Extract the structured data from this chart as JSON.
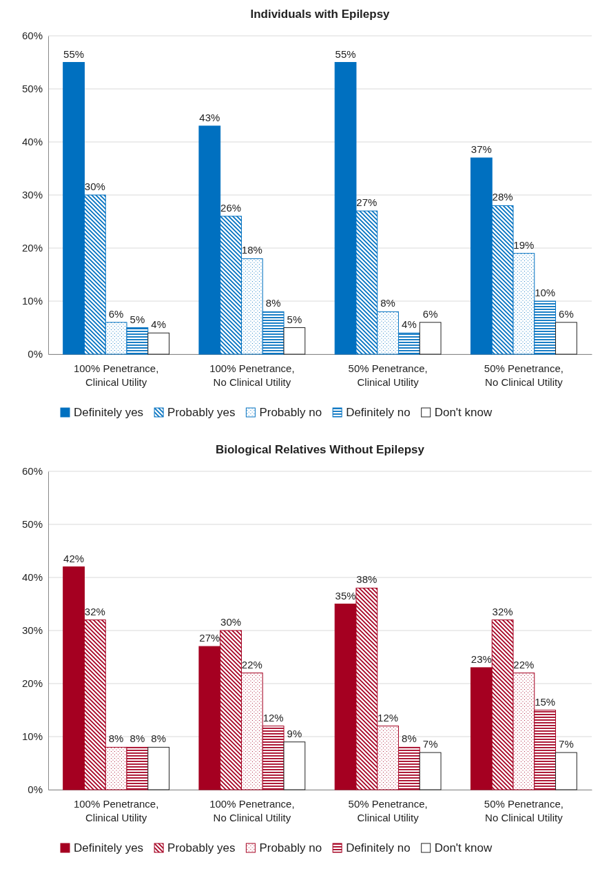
{
  "chart_data": [
    {
      "type": "bar",
      "title": "Individuals with Epilepsy",
      "categories": [
        "100% Penetrance, Clinical Utility",
        "100% Penetrance, No Clinical Utility",
        "50% Penetrance, Clinical Utility",
        "50% Penetrance, No Clinical Utility"
      ],
      "ylim": [
        0,
        60
      ],
      "yticks": [
        {
          "value": 0,
          "label": "0%"
        },
        {
          "value": 10,
          "label": "10%"
        },
        {
          "value": 20,
          "label": "20%"
        },
        {
          "value": 30,
          "label": "30%"
        },
        {
          "value": 40,
          "label": "40%"
        },
        {
          "value": 50,
          "label": "50%"
        },
        {
          "value": 60,
          "label": "60%"
        }
      ],
      "grid": "y",
      "legend": "bottom",
      "series": [
        {
          "name": "Definitely yes",
          "color": "#0070c0",
          "values": [
            55,
            43,
            55,
            37
          ],
          "value_labels": [
            "55%",
            "43%",
            "55%",
            "37%"
          ]
        },
        {
          "name": "Probably yes",
          "color": "#0070c0",
          "values": [
            30,
            26,
            27,
            28
          ],
          "value_labels": [
            "30%",
            "26%",
            "27%",
            "28%"
          ]
        },
        {
          "name": "Probably no",
          "color": "#0070c0",
          "values": [
            6,
            18,
            8,
            19
          ],
          "value_labels": [
            "6%",
            "18%",
            "8%",
            "19%"
          ]
        },
        {
          "name": "Definitely no",
          "color": "#0070c0",
          "values": [
            5,
            8,
            4,
            10
          ],
          "value_labels": [
            "5%",
            "8%",
            "4%",
            "10%"
          ]
        },
        {
          "name": "Don't know",
          "color": "#ffffff",
          "values": [
            4,
            5,
            6,
            6
          ],
          "value_labels": [
            "4%",
            "5%",
            "6%",
            "6%"
          ]
        }
      ]
    },
    {
      "type": "bar",
      "title": "Biological Relatives Without Epilepsy",
      "categories": [
        "100% Penetrance, Clinical Utility",
        "100% Penetrance, No Clinical Utility",
        "50% Penetrance, Clinical Utility",
        "50% Penetrance, No Clinical Utility"
      ],
      "ylim": [
        0,
        60
      ],
      "yticks": [
        {
          "value": 0,
          "label": "0%"
        },
        {
          "value": 10,
          "label": "10%"
        },
        {
          "value": 20,
          "label": "20%"
        },
        {
          "value": 30,
          "label": "30%"
        },
        {
          "value": 40,
          "label": "40%"
        },
        {
          "value": 50,
          "label": "50%"
        },
        {
          "value": 60,
          "label": "60%"
        }
      ],
      "grid": "y",
      "legend": "bottom",
      "series": [
        {
          "name": "Definitely yes",
          "color": "#a50021",
          "values": [
            42,
            27,
            35,
            23
          ],
          "value_labels": [
            "42%",
            "27%",
            "35%",
            "23%"
          ]
        },
        {
          "name": "Probably yes",
          "color": "#a50021",
          "values": [
            32,
            30,
            38,
            32
          ],
          "value_labels": [
            "32%",
            "30%",
            "38%",
            "32%"
          ]
        },
        {
          "name": "Probably no",
          "color": "#a50021",
          "values": [
            8,
            22,
            12,
            22
          ],
          "value_labels": [
            "8%",
            "22%",
            "12%",
            "22%"
          ]
        },
        {
          "name": "Definitely no",
          "color": "#a50021",
          "values": [
            8,
            12,
            8,
            15
          ],
          "value_labels": [
            "8%",
            "12%",
            "8%",
            "15%"
          ]
        },
        {
          "name": "Don't know",
          "color": "#ffffff",
          "values": [
            8,
            9,
            7,
            7
          ],
          "value_labels": [
            "8%",
            "9%",
            "7%",
            "7%"
          ]
        }
      ]
    }
  ]
}
